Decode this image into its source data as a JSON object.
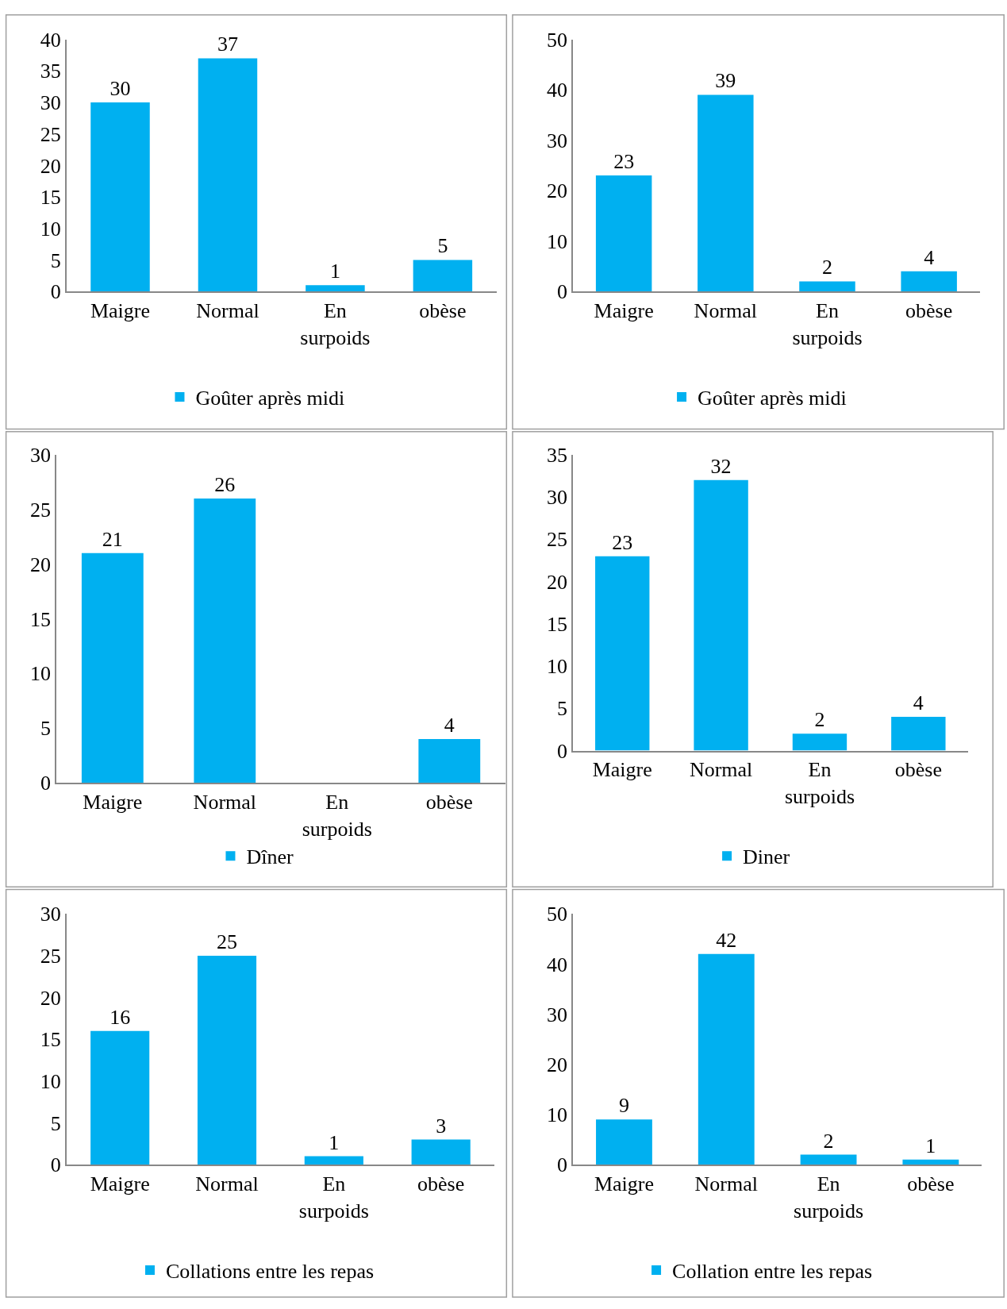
{
  "chart_data": [
    {
      "type": "bar",
      "categories": [
        "Maigre",
        "Normal",
        "En surpoids",
        "obèse"
      ],
      "series": [
        {
          "name": "Goûter après midi",
          "color": "#00b0f0",
          "values": [
            30,
            37,
            1,
            5
          ]
        }
      ],
      "ylim": [
        0,
        40
      ],
      "yticks": [
        0,
        5,
        10,
        15,
        20,
        25,
        30,
        35,
        40
      ],
      "data_labels": true,
      "legend": "bottom"
    },
    {
      "type": "bar",
      "categories": [
        "Maigre",
        "Normal",
        "En surpoids",
        "obèse"
      ],
      "series": [
        {
          "name": "Goûter après midi",
          "color": "#00b0f0",
          "values": [
            23,
            39,
            2,
            4
          ]
        }
      ],
      "ylim": [
        0,
        50
      ],
      "yticks": [
        0,
        10,
        20,
        30,
        40,
        50
      ],
      "data_labels": true,
      "legend": "bottom"
    },
    {
      "type": "bar",
      "categories": [
        "Maigre",
        "Normal",
        "En surpoids",
        "obèse"
      ],
      "series": [
        {
          "name": "Dîner",
          "color": "#00b0f0",
          "values": [
            21,
            26,
            null,
            4
          ]
        }
      ],
      "ylim": [
        0,
        30
      ],
      "yticks": [
        0,
        5,
        10,
        15,
        20,
        25,
        30
      ],
      "data_labels": true,
      "legend": "bottom"
    },
    {
      "type": "bar",
      "categories": [
        "Maigre",
        "Normal",
        "En surpoids",
        "obèse"
      ],
      "series": [
        {
          "name": "Diner",
          "color": "#00b0f0",
          "values": [
            23,
            32,
            2,
            4
          ]
        }
      ],
      "ylim": [
        0,
        35
      ],
      "yticks": [
        0,
        5,
        10,
        15,
        20,
        25,
        30,
        35
      ],
      "data_labels": true,
      "legend": "bottom"
    },
    {
      "type": "bar",
      "categories": [
        "Maigre",
        "Normal",
        "En surpoids",
        "obèse"
      ],
      "series": [
        {
          "name": "Collations entre les repas",
          "color": "#00b0f0",
          "values": [
            16,
            25,
            1,
            3
          ]
        }
      ],
      "ylim": [
        0,
        30
      ],
      "yticks": [
        0,
        5,
        10,
        15,
        20,
        25,
        30
      ],
      "data_labels": true,
      "legend": "bottom"
    },
    {
      "type": "bar",
      "categories": [
        "Maigre",
        "Normal",
        "En surpoids",
        "obèse"
      ],
      "series": [
        {
          "name": "Collation entre les repas",
          "color": "#00b0f0",
          "values": [
            9,
            42,
            2,
            1
          ]
        }
      ],
      "ylim": [
        0,
        50
      ],
      "yticks": [
        0,
        10,
        20,
        30,
        40,
        50
      ],
      "data_labels": true,
      "legend": "bottom"
    }
  ]
}
